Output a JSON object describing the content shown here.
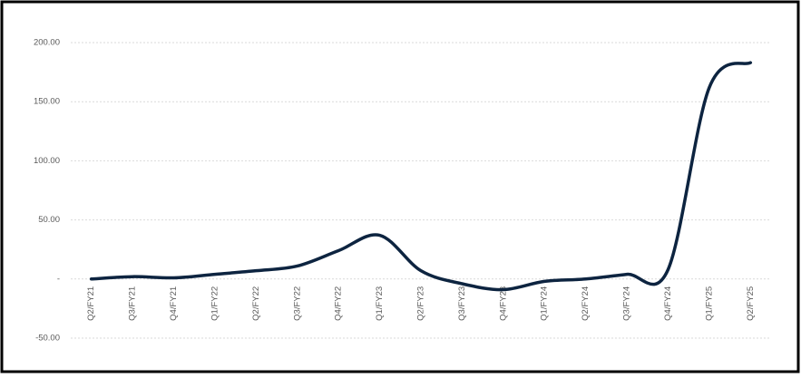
{
  "chart_data": {
    "type": "line",
    "categories": [
      "Q2/FY21",
      "Q3/FY21",
      "Q4/FY21",
      "Q1/FY22",
      "Q2/FY22",
      "Q3/FY22",
      "Q4/FY22",
      "Q1/FY23",
      "Q2/FY23",
      "Q3/FY23",
      "Q4/FY23",
      "Q1/FY24",
      "Q2/FY24",
      "Q3/FY24",
      "Q4/FY24",
      "Q1/FY25",
      "Q2/FY25"
    ],
    "values": [
      0,
      2,
      1,
      4,
      7,
      11,
      24,
      37,
      7,
      -4,
      -9,
      -2,
      0,
      4,
      8,
      162,
      183
    ],
    "color": "#0d2440",
    "ylim": [
      -50,
      200
    ],
    "yticks": [
      {
        "value": -50,
        "label": "-50.00"
      },
      {
        "value": 0,
        "label": "-"
      },
      {
        "value": 50,
        "label": "50.00"
      },
      {
        "value": 100,
        "label": "100.00"
      },
      {
        "value": 150,
        "label": "150.00"
      },
      {
        "value": 200,
        "label": "200.00"
      }
    ],
    "grid": true,
    "smooth": true
  }
}
